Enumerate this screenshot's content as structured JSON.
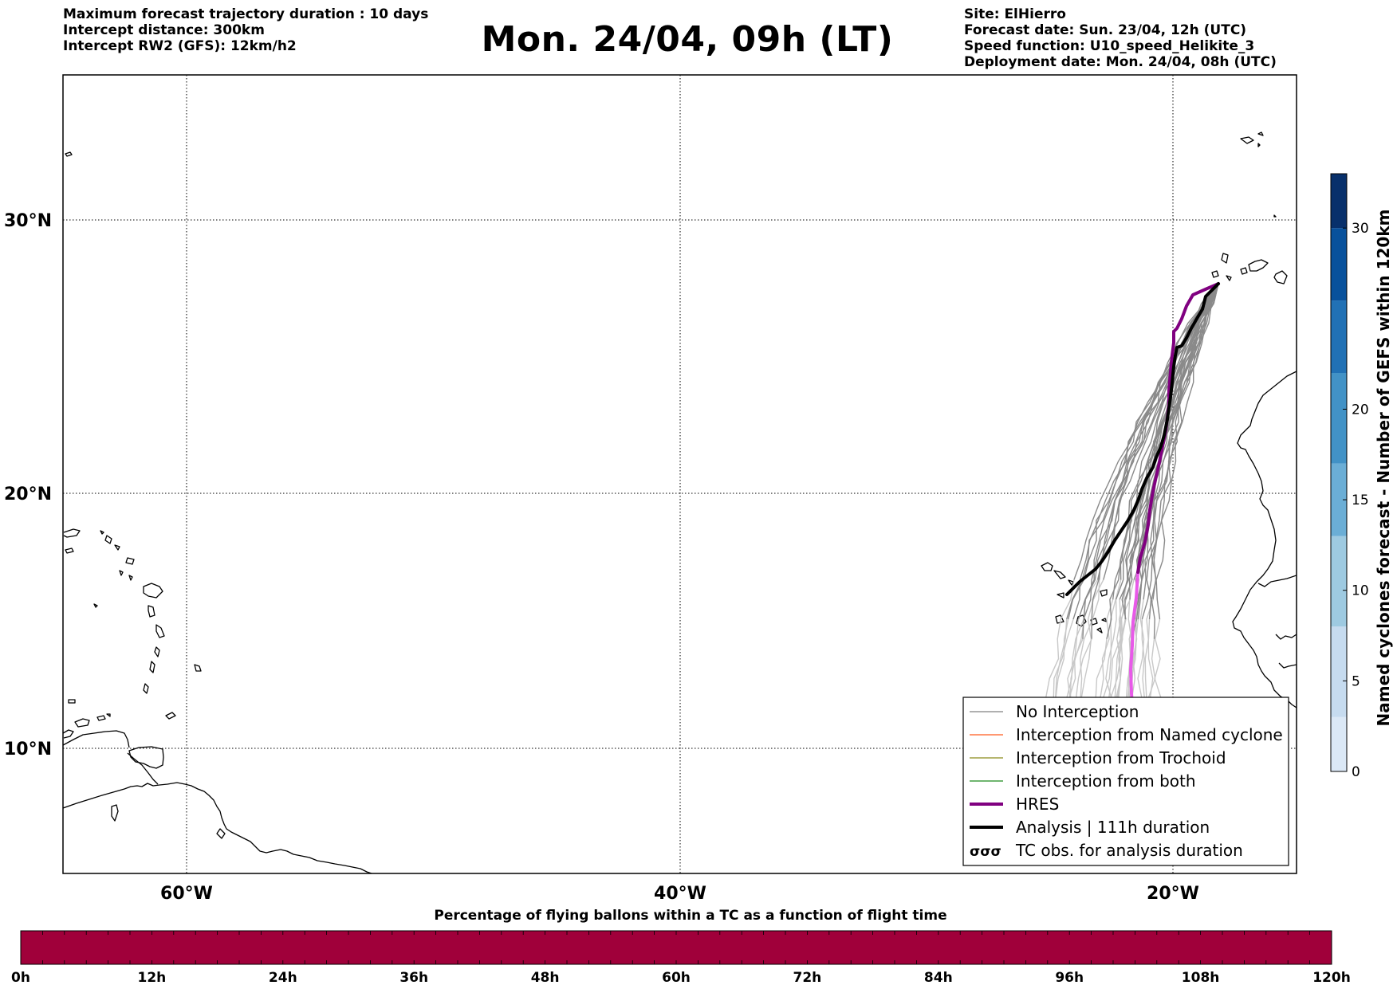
{
  "header": {
    "left_lines": [
      "Maximum forecast trajectory duration : 10 days",
      "Intercept distance: 300km",
      "Intercept RW2 (GFS):  12km/h2"
    ],
    "title": "Mon. 24/04, 09h (LT)",
    "right_lines": [
      "Site: ElHierro",
      "Forecast date: Sun. 23/04, 12h (UTC)",
      "Speed function: U10_speed_Helikite_3",
      "Deployment date: Mon. 24/04, 08h (UTC)"
    ]
  },
  "map": {
    "lat_labels": [
      "30°N",
      "20°N",
      "10°N"
    ],
    "lon_labels": [
      "60°W",
      "40°W",
      "20°W"
    ],
    "gridlines": "dotted"
  },
  "legend": {
    "items": [
      {
        "label": "No Interception",
        "color": "#808080",
        "style": "thin-line"
      },
      {
        "label": "Interception from Named cyclone",
        "color": "#ff5a1f",
        "style": "thin-line"
      },
      {
        "label": "Interception from Trochoid",
        "color": "#8a8a1a",
        "style": "thin-line"
      },
      {
        "label": "Interception from both",
        "color": "#1a8a1a",
        "style": "thin-line"
      },
      {
        "label": "HRES",
        "color": "#800080",
        "style": "thick-line"
      },
      {
        "label": "Analysis | 111h duration",
        "color": "#000000",
        "style": "thick-line"
      },
      {
        "label": "TC obs. for analysis duration",
        "color": "#000000",
        "style": "cyclone-symbols"
      }
    ]
  },
  "colorbar_right": {
    "label": "Named cyclones forecast - Number of GEFS within 120km",
    "ticks": [
      "0",
      "5",
      "10",
      "15",
      "20",
      "30"
    ],
    "colors": [
      "#dbe8f6",
      "#c6dbef",
      "#9ecae1",
      "#6baed6",
      "#4292c6",
      "#2171b5",
      "#08519c",
      "#08306b"
    ]
  },
  "colorbar_bottom": {
    "title": "Percentage of flying ballons within a TC as a function of flight time",
    "ticks": [
      "0h",
      "12h",
      "24h",
      "36h",
      "48h",
      "60h",
      "72h",
      "84h",
      "96h",
      "108h",
      "120h"
    ],
    "fill_color": "#a0003a"
  }
}
